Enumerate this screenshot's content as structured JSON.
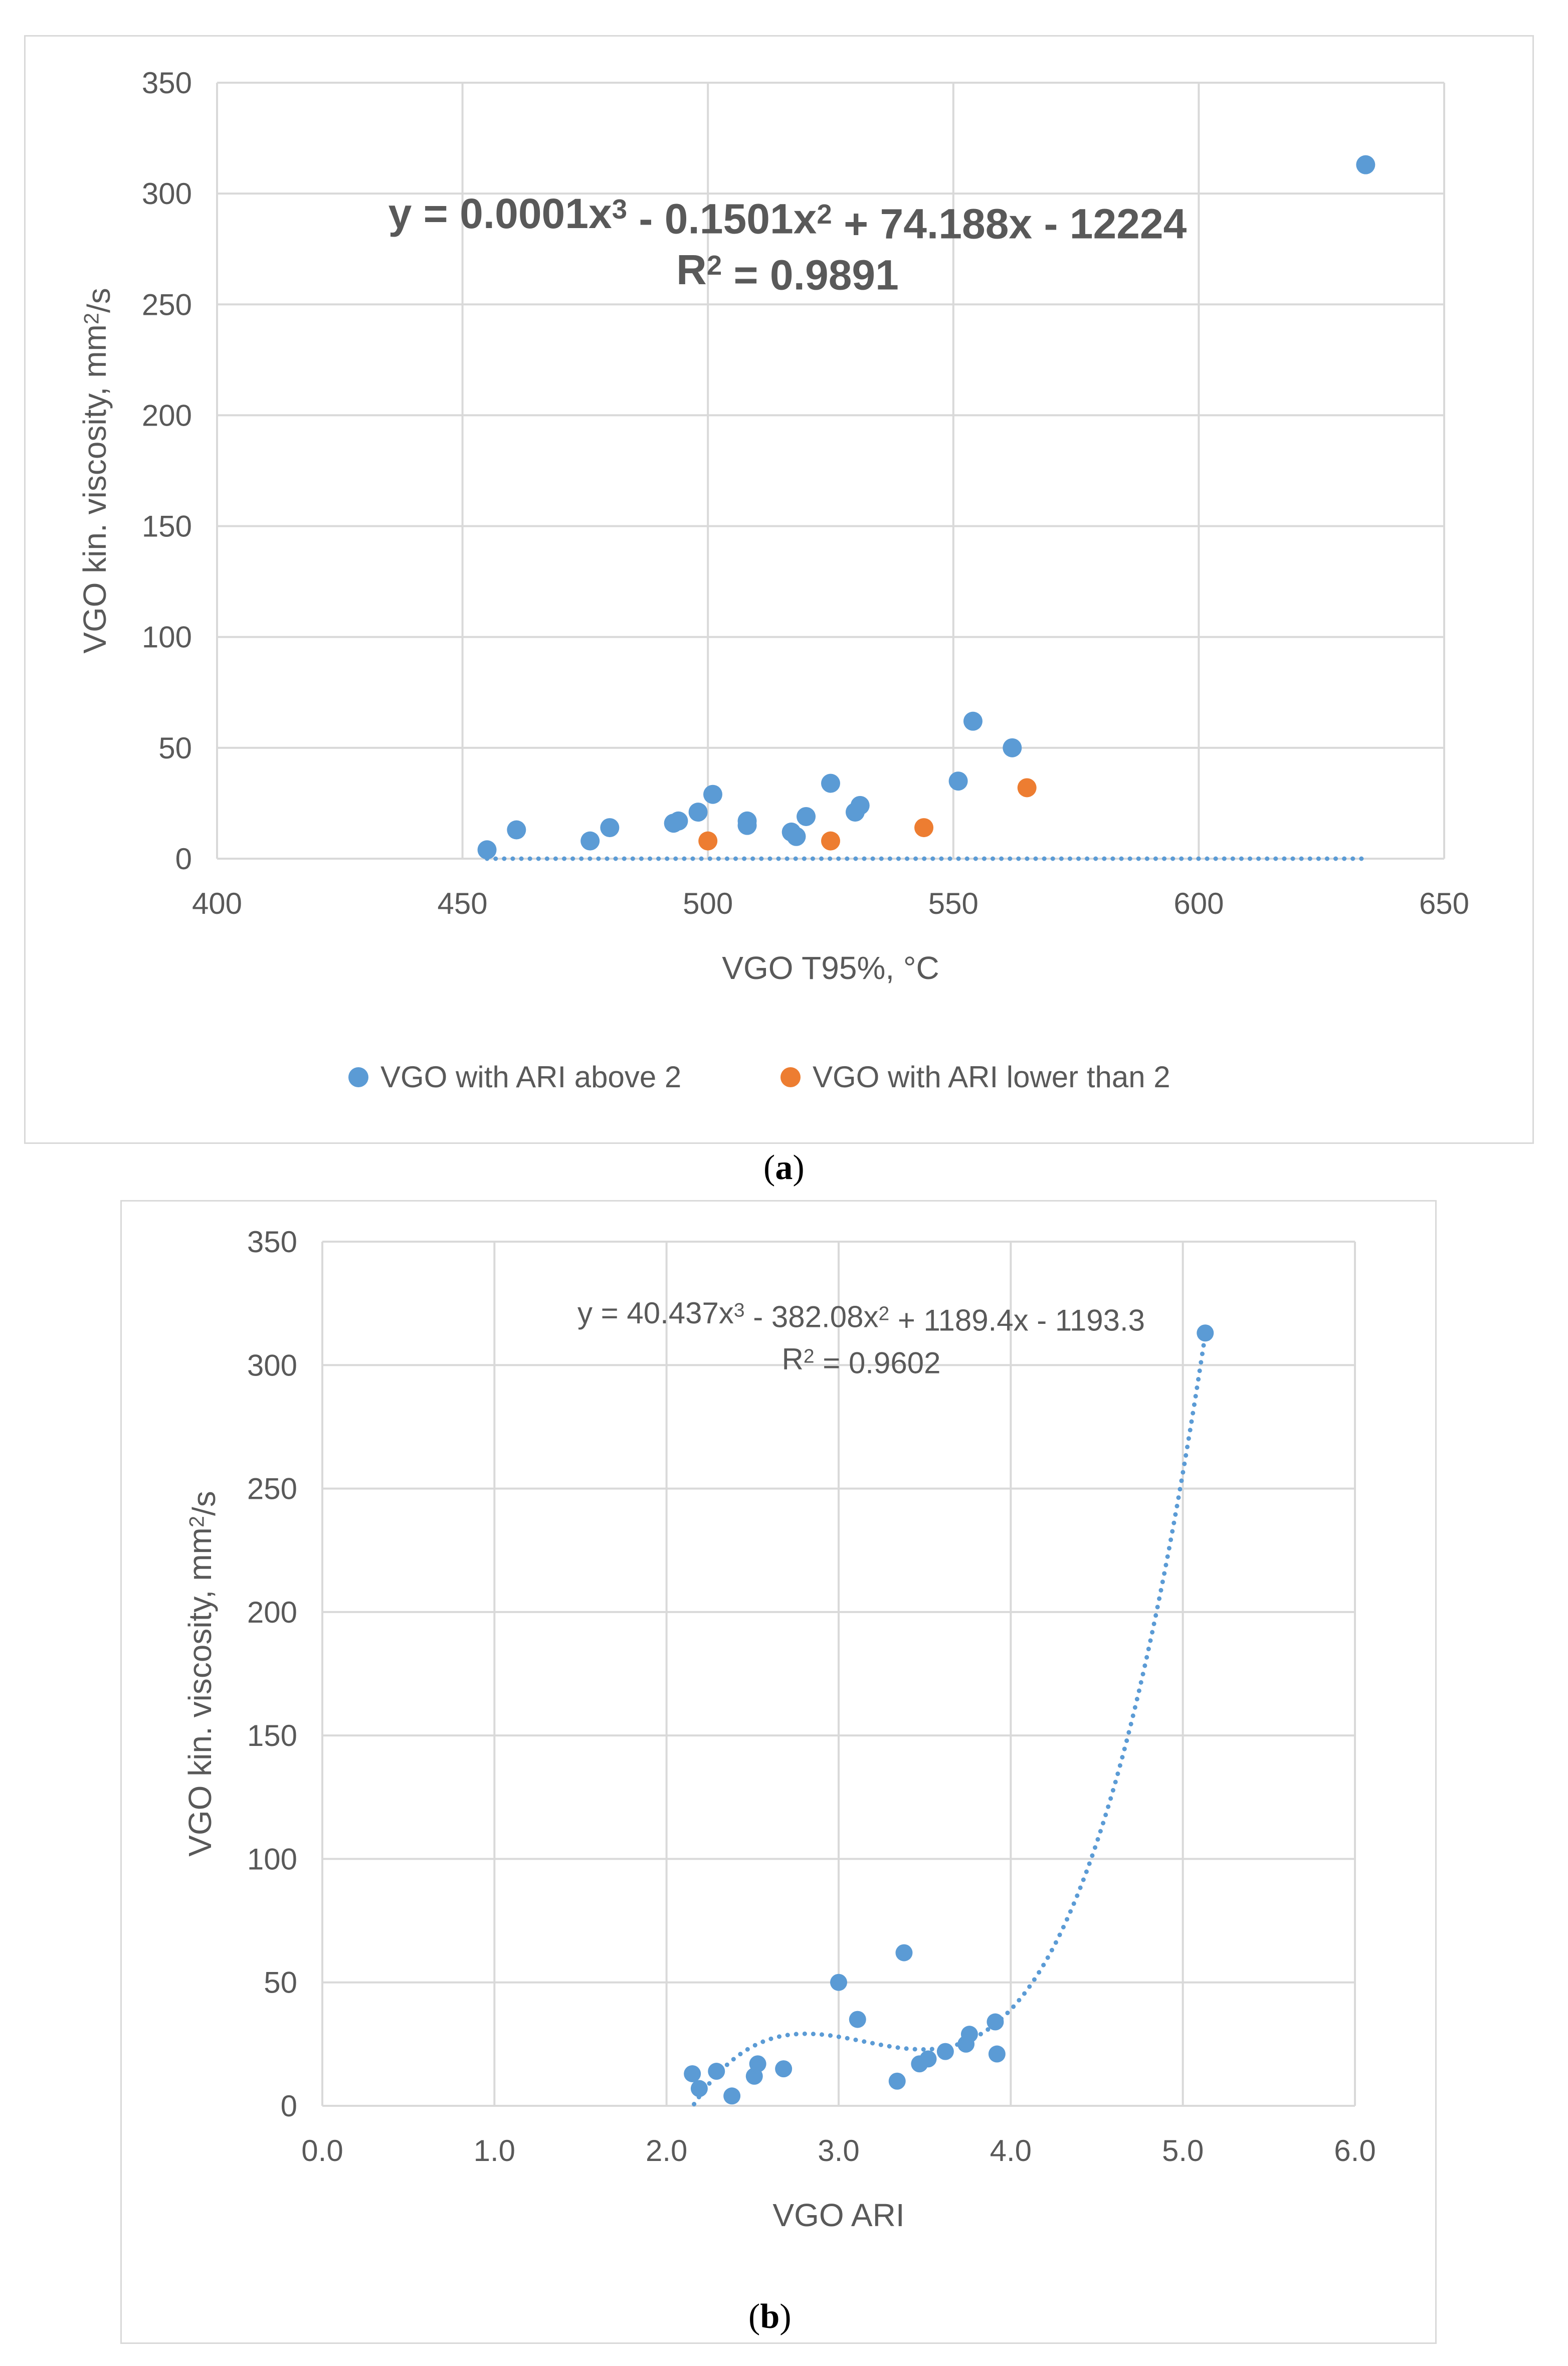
{
  "figure": {
    "panel_a_label_letter": "a",
    "panel_b_label_letter": "b"
  },
  "chart_data": [
    {
      "id": "a",
      "type": "scatter",
      "xlabel": "VGO T95%, °C",
      "ylabel": "VGO kin. viscosity, mm²/s",
      "xlim": [
        400,
        650
      ],
      "ylim": [
        0,
        350
      ],
      "xticks": [
        400,
        450,
        500,
        550,
        600,
        650
      ],
      "yticks": [
        0,
        50,
        100,
        150,
        200,
        250,
        300,
        350
      ],
      "xtick_labels": [
        "400",
        "450",
        "500",
        "550",
        "600",
        "650"
      ],
      "ytick_labels": [
        "0",
        "50",
        "100",
        "150",
        "200",
        "250",
        "300",
        "350"
      ],
      "grid": true,
      "legend_position": "bottom",
      "trendline": {
        "type": "polynomial-3",
        "coefficients": [
          0.0001,
          -0.1501,
          74.188,
          -12224
        ],
        "equation_label": "y = 0.0001x³ - 0.1501x² + 74.188x - 12224",
        "r2_label": "R² = 0.9891",
        "x_range": [
          455,
          634
        ],
        "bold": true
      },
      "series": [
        {
          "name": "VGO with ARI above 2",
          "color": "#5b9bd5",
          "points": [
            [
              455,
              4
            ],
            [
              461,
              13
            ],
            [
              476,
              8
            ],
            [
              480,
              14
            ],
            [
              493,
              16
            ],
            [
              494,
              17
            ],
            [
              498,
              21
            ],
            [
              501,
              29
            ],
            [
              508,
              15
            ],
            [
              508,
              17
            ],
            [
              517,
              12
            ],
            [
              518,
              10
            ],
            [
              520,
              19
            ],
            [
              525,
              34
            ],
            [
              530,
              21
            ],
            [
              531,
              24
            ],
            [
              551,
              35
            ],
            [
              554,
              62
            ],
            [
              562,
              50
            ],
            [
              634,
              313
            ]
          ]
        },
        {
          "name": "VGO with ARI lower than 2",
          "color": "#ed7d31",
          "points": [
            [
              500,
              8
            ],
            [
              525,
              8
            ],
            [
              544,
              14
            ],
            [
              565,
              32
            ]
          ]
        }
      ]
    },
    {
      "id": "b",
      "type": "scatter",
      "xlabel": "VGO ARI",
      "ylabel": "VGO kin. viscosity, mm²/s",
      "xlim": [
        0,
        6
      ],
      "ylim": [
        0,
        350
      ],
      "xticks": [
        0,
        1,
        2,
        3,
        4,
        5,
        6
      ],
      "yticks": [
        0,
        50,
        100,
        150,
        200,
        250,
        300,
        350
      ],
      "xtick_labels": [
        "0.0",
        "1.0",
        "2.0",
        "3.0",
        "4.0",
        "5.0",
        "6.0"
      ],
      "ytick_labels": [
        "0",
        "50",
        "100",
        "150",
        "200",
        "250",
        "300",
        "350"
      ],
      "grid": true,
      "trendline": {
        "type": "polynomial-3",
        "coefficients": [
          40.437,
          -382.08,
          1189.4,
          -1193.3
        ],
        "equation_label": "y = 40.437x³ - 382.08x² + 1189.4x - 1193.3",
        "r2_label": "R² = 0.9602",
        "x_range": [
          2.16,
          5.13
        ],
        "bold": false
      },
      "series": [
        {
          "name": "VGO ARI",
          "color": "#5b9bd5",
          "points": [
            [
              2.15,
              13
            ],
            [
              2.19,
              7
            ],
            [
              2.29,
              14
            ],
            [
              2.38,
              4
            ],
            [
              2.51,
              12
            ],
            [
              2.53,
              17
            ],
            [
              2.68,
              15
            ],
            [
              3.0,
              50
            ],
            [
              3.11,
              35
            ],
            [
              3.34,
              10
            ],
            [
              3.38,
              62
            ],
            [
              3.47,
              17
            ],
            [
              3.52,
              19
            ],
            [
              3.62,
              22
            ],
            [
              3.74,
              25
            ],
            [
              3.76,
              29
            ],
            [
              3.91,
              34
            ],
            [
              3.92,
              21
            ],
            [
              5.13,
              313
            ]
          ]
        }
      ]
    }
  ]
}
